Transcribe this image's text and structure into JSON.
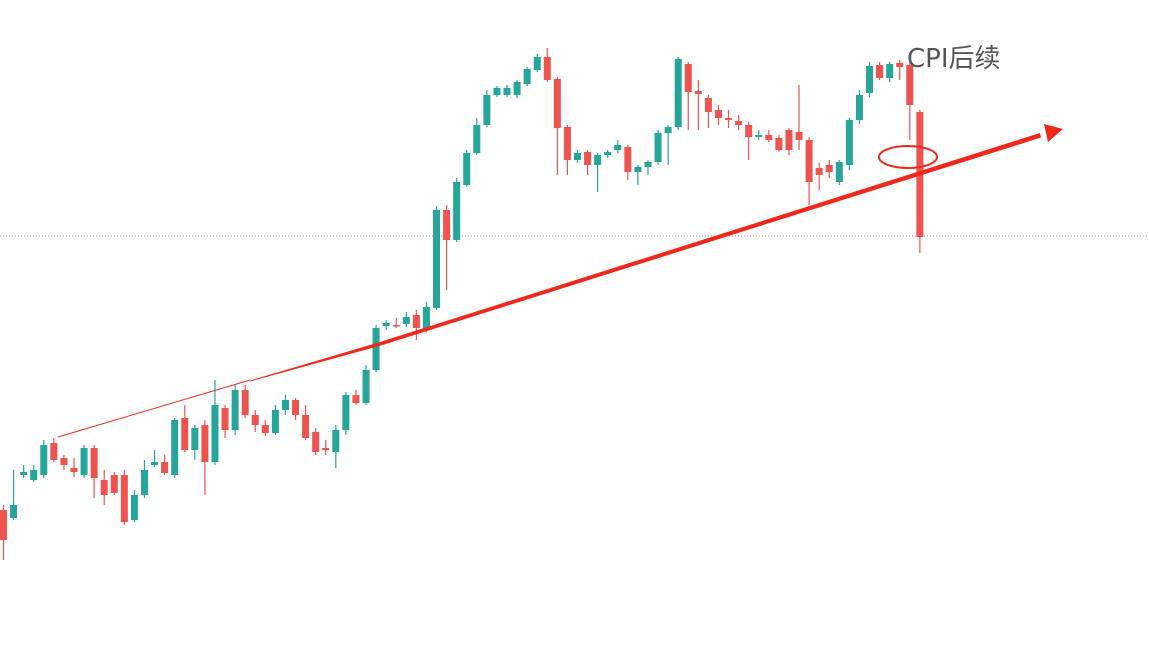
{
  "chart_data": {
    "type": "candlestick",
    "title": "",
    "xlabel": "",
    "ylabel": "",
    "grid": false,
    "ylim": [
      0,
      657
    ],
    "colors": {
      "up": "#26a69a",
      "down": "#ef5350",
      "trend": "#f0281c",
      "reference": "#e8776a"
    },
    "reference_line": {
      "y": 236,
      "style": "dotted"
    },
    "candles": [
      [
        510,
        540,
        505,
        560
      ],
      [
        518,
        505,
        470,
        520
      ],
      [
        475,
        472,
        465,
        478
      ],
      [
        480,
        470,
        465,
        482
      ],
      [
        475,
        445,
        440,
        478
      ],
      [
        443,
        460,
        438,
        462
      ],
      [
        458,
        465,
        455,
        470
      ],
      [
        468,
        472,
        458,
        477
      ],
      [
        475,
        448,
        445,
        478
      ],
      [
        448,
        478,
        445,
        498
      ],
      [
        480,
        495,
        470,
        505
      ],
      [
        475,
        493,
        472,
        495
      ],
      [
        475,
        522,
        470,
        525
      ],
      [
        520,
        495,
        490,
        522
      ],
      [
        495,
        470,
        460,
        498
      ],
      [
        465,
        462,
        450,
        467
      ],
      [
        462,
        473,
        455,
        475
      ],
      [
        475,
        420,
        418,
        478
      ],
      [
        418,
        450,
        405,
        452
      ],
      [
        450,
        428,
        425,
        460
      ],
      [
        425,
        462,
        420,
        495
      ],
      [
        462,
        405,
        380,
        465
      ],
      [
        408,
        430,
        405,
        438
      ],
      [
        430,
        390,
        385,
        435
      ],
      [
        390,
        415,
        385,
        418
      ],
      [
        415,
        425,
        410,
        432
      ],
      [
        425,
        433,
        420,
        436
      ],
      [
        433,
        410,
        405,
        435
      ],
      [
        410,
        400,
        395,
        415
      ],
      [
        400,
        415,
        398,
        420
      ],
      [
        415,
        438,
        405,
        440
      ],
      [
        432,
        452,
        428,
        455
      ],
      [
        448,
        450,
        440,
        455
      ],
      [
        452,
        430,
        425,
        468
      ],
      [
        430,
        395,
        392,
        435
      ],
      [
        395,
        403,
        390,
        405
      ],
      [
        403,
        370,
        365,
        405
      ],
      [
        370,
        328,
        325,
        372
      ],
      [
        326,
        323,
        320,
        330
      ],
      [
        325,
        325,
        318,
        328
      ],
      [
        324,
        317,
        312,
        327
      ],
      [
        315,
        328,
        310,
        340
      ],
      [
        330,
        307,
        302,
        332
      ],
      [
        308,
        210,
        206,
        310
      ],
      [
        210,
        240,
        205,
        290
      ],
      [
        240,
        182,
        178,
        242
      ],
      [
        185,
        153,
        150,
        187
      ],
      [
        153,
        125,
        118,
        155
      ],
      [
        125,
        95,
        90,
        127
      ],
      [
        95,
        88,
        86,
        97
      ],
      [
        95,
        88,
        85,
        97
      ],
      [
        95,
        82,
        80,
        98
      ],
      [
        84,
        69,
        67,
        86
      ],
      [
        70,
        57,
        54,
        72
      ],
      [
        57,
        80,
        48,
        82
      ],
      [
        79,
        128,
        77,
        175
      ],
      [
        127,
        160,
        125,
        175
      ],
      [
        160,
        153,
        150,
        163
      ],
      [
        152,
        165,
        150,
        175
      ],
      [
        165,
        155,
        153,
        192
      ],
      [
        155,
        152,
        150,
        158
      ],
      [
        150,
        145,
        140,
        153
      ],
      [
        147,
        172,
        145,
        180
      ],
      [
        172,
        167,
        165,
        185
      ],
      [
        167,
        162,
        160,
        175
      ],
      [
        162,
        133,
        130,
        165
      ],
      [
        133,
        127,
        125,
        165
      ],
      [
        127,
        59,
        57,
        130
      ],
      [
        64,
        92,
        62,
        130
      ],
      [
        91,
        94,
        80,
        130
      ],
      [
        98,
        112,
        95,
        128
      ],
      [
        110,
        118,
        105,
        125
      ],
      [
        118,
        120,
        110,
        128
      ],
      [
        121,
        125,
        115,
        130
      ],
      [
        125,
        137,
        122,
        160
      ],
      [
        137,
        135,
        130,
        140
      ],
      [
        135,
        140,
        130,
        142
      ],
      [
        138,
        150,
        135,
        152
      ],
      [
        130,
        150,
        128,
        155
      ],
      [
        132,
        140,
        85,
        150
      ],
      [
        140,
        182,
        137,
        205
      ],
      [
        168,
        175,
        163,
        190
      ],
      [
        165,
        172,
        160,
        178
      ],
      [
        182,
        162,
        160,
        185
      ],
      [
        165,
        120,
        118,
        170
      ],
      [
        120,
        95,
        90,
        124
      ],
      [
        93,
        66,
        62,
        97
      ],
      [
        65,
        78,
        62,
        80
      ],
      [
        78,
        64,
        62,
        82
      ],
      [
        63,
        67,
        60,
        80
      ],
      [
        65,
        105,
        62,
        140
      ],
      [
        112,
        237,
        110,
        253
      ]
    ],
    "annotations": [
      {
        "text": "CPI后续"
      }
    ]
  }
}
